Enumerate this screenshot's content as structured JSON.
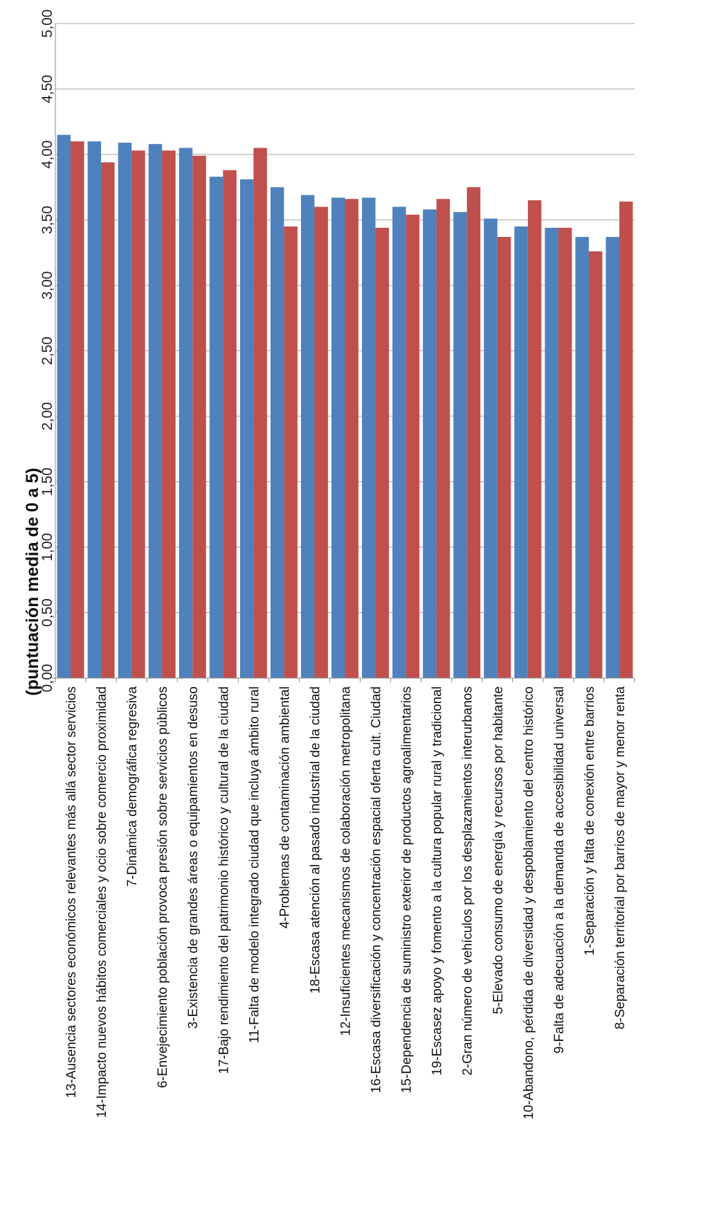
{
  "chart_data": {
    "type": "bar",
    "ylabel": "(puntuación media de 0 a 5)",
    "ylim": [
      0,
      5
    ],
    "ytick_labels": [
      "0,00",
      "0,50",
      "1,00",
      "1,50",
      "2,00",
      "2,50",
      "3,00",
      "3,50",
      "4,00",
      "4,50",
      "5,00"
    ],
    "grid": true,
    "legend": "none",
    "orientation": "rotated 90° counter-clockwise",
    "categories": [
      "13-Ausencia sectores económicos relevantes más allá sector servicios",
      "14-Impacto nuevos hábitos comerciales y ocio sobre comercio proximidad",
      "7-Dinámica demográfica regresiva",
      "6-Envejecimiento población provoca presión sobre servicios públicos",
      "3-Existencia de grandes áreas o equipamientos en desuso",
      "17-Bajo rendimiento del patrimonio histórico y cultural de la ciudad",
      "11-Falta de modelo integrado ciudad que incluya ámbito rural",
      "4-Problemas de contaminación ambiental",
      "18-Escasa atención al pasado industrial de la ciudad",
      "12-Insuficientes mecanismos de colaboración metropolitana",
      "16-Escasa diversificación y concentración espacial oferta cult. Ciudad",
      "15-Dependencia de suministro exterior de productos agroalimentarios",
      "19-Escasez apoyo y fomento a la cultura popular rural y tradicional",
      "2-Gran número de vehículos por los desplazamientos interurbanos",
      "5-Elevado consumo de energía y recursos por habitante",
      "10-Abandono, pérdida de diversidad y despoblamiento del centro histórico",
      "9-Falta de adecuación a la demanda de accesibilidad universal",
      "1-Separación y falta de conexión entre barrios",
      "8-Separación territorial por barrios de mayor y menor renta"
    ],
    "series": [
      {
        "color": "#4F81BD",
        "values": [
          4.15,
          4.1,
          4.09,
          4.08,
          4.05,
          3.83,
          3.81,
          3.75,
          3.69,
          3.67,
          3.67,
          3.6,
          3.58,
          3.56,
          3.51,
          3.45,
          3.44,
          3.37,
          3.37
        ]
      },
      {
        "color": "#C0504D",
        "values": [
          4.1,
          3.94,
          4.03,
          4.03,
          3.99,
          3.88,
          4.05,
          3.45,
          3.6,
          3.66,
          3.44,
          3.54,
          3.66,
          3.75,
          3.37,
          3.65,
          3.44,
          3.26,
          3.64
        ]
      }
    ]
  }
}
